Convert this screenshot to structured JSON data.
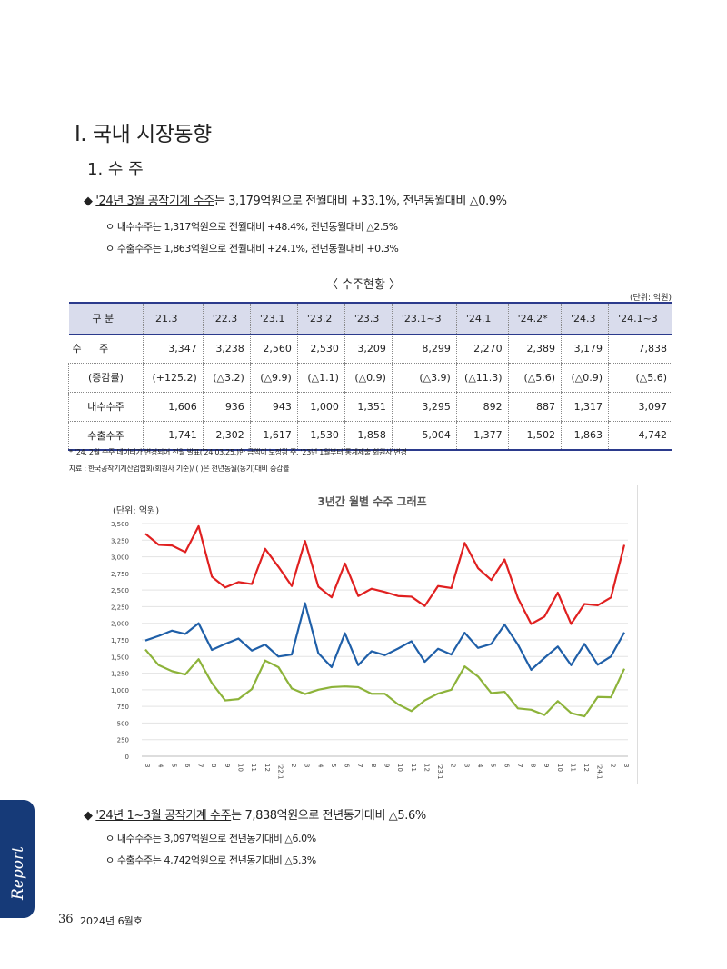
{
  "section_title": "Ⅰ. 국내 시장동향",
  "subsection_title": "1. 수 주",
  "bullet1": {
    "marker": "◆",
    "underlined": "'24년 3월 공작기계 수주",
    "rest": "는 3,179억원으로 전월대비 +33.1%, 전년동월대비 △0.9%"
  },
  "bullet1_subs": [
    "ㅇ 내수수주는 1,317억원으로 전월대비 +48.4%, 전년동월대비 △2.5%",
    "ㅇ 수출수주는 1,863억원으로 전월대비 +24.1%, 전년동월대비 +0.3%"
  ],
  "table_title": "〈 수주현황 〉",
  "table_unit": "(단위: 억원)",
  "table": {
    "header": [
      "구 분",
      "'21.3",
      "'22.3",
      "'23.1",
      "'23.2",
      "'23.3",
      "'23.1~3",
      "'24.1",
      "'24.2*",
      "'24.3",
      "'24.1~3"
    ],
    "rows": [
      {
        "label": "수  주",
        "values": [
          "3,347",
          "3,238",
          "2,560",
          "2,530",
          "3,209",
          "8,299",
          "2,270",
          "2,389",
          "3,179",
          "7,838"
        ]
      },
      {
        "label": "(증감률)",
        "values": [
          "(+125.2)",
          "(△3.2)",
          "(△9.9)",
          "(△1.1)",
          "(△0.9)",
          "(△3.9)",
          "(△11.3)",
          "(△5.6)",
          "(△0.9)",
          "(△5.6)"
        ]
      },
      {
        "label": "내수수주",
        "values": [
          "1,606",
          "936",
          "943",
          "1,000",
          "1,351",
          "3,295",
          "892",
          "887",
          "1,317",
          "3,097"
        ]
      },
      {
        "label": "수출수주",
        "values": [
          "1,741",
          "2,302",
          "1,617",
          "1,530",
          "1,858",
          "5,004",
          "1,377",
          "1,502",
          "1,863",
          "4,742"
        ]
      }
    ]
  },
  "note1": "* '24. 2월 수주 데이터가 변경되어 전월 발표('24.03.25.)한 금액이 보정됨        주. '23년 1월부터 통계제출 회원사 변경",
  "note2": "자료 : 한국공작기계산업협회(회원사 기준)/ (  )은 전년동월(동기)대비 증감률",
  "chart_data": {
    "type": "line",
    "title": "3년간 월별 수주 그래프",
    "ylabel": "(단위: 억원)",
    "ylim": [
      0,
      3500
    ],
    "yticks": [
      "0",
      "250",
      "500",
      "750",
      "1,000",
      "1,250",
      "1,500",
      "1,750",
      "2,000",
      "2,250",
      "2,500",
      "2,750",
      "3,000",
      "3,250",
      "3,500"
    ],
    "categories": [
      "3",
      "4",
      "5",
      "6",
      "7",
      "8",
      "9",
      "10",
      "11",
      "12",
      "'22.1",
      "2",
      "3",
      "4",
      "5",
      "6",
      "7",
      "8",
      "9",
      "10",
      "11",
      "12",
      "'23.1",
      "2",
      "3",
      "4",
      "5",
      "6",
      "7",
      "8",
      "9",
      "10",
      "11",
      "12",
      "'24.1",
      "2",
      "3"
    ],
    "series": [
      {
        "color": "#e02020",
        "values": [
          3347,
          3180,
          3170,
          3070,
          3460,
          2700,
          2540,
          2620,
          2590,
          3120,
          2850,
          2560,
          3238,
          2550,
          2390,
          2900,
          2410,
          2520,
          2470,
          2410,
          2400,
          2260,
          2560,
          2530,
          3209,
          2830,
          2650,
          2960,
          2380,
          1990,
          2100,
          2460,
          1990,
          2290,
          2270,
          2389,
          3179
        ]
      },
      {
        "color": "#1f5fa8",
        "values": [
          1741,
          1810,
          1890,
          1840,
          2000,
          1600,
          1690,
          1770,
          1590,
          1680,
          1500,
          1530,
          2302,
          1550,
          1340,
          1850,
          1370,
          1580,
          1520,
          1620,
          1730,
          1420,
          1617,
          1530,
          1858,
          1630,
          1690,
          1980,
          1680,
          1300,
          1480,
          1650,
          1370,
          1690,
          1377,
          1502,
          1863
        ]
      },
      {
        "color": "#8db33a",
        "values": [
          1606,
          1370,
          1280,
          1230,
          1460,
          1100,
          840,
          860,
          1010,
          1440,
          1340,
          1020,
          936,
          1000,
          1040,
          1050,
          1040,
          940,
          940,
          780,
          680,
          840,
          943,
          1000,
          1351,
          1200,
          950,
          970,
          720,
          700,
          620,
          830,
          650,
          600,
          892,
          887,
          1317
        ]
      }
    ]
  },
  "bullet2": {
    "marker": "◆",
    "underlined": "'24년 1~3월 공작기계 수주",
    "rest": "는 7,838억원으로 전년동기대비 △5.6%"
  },
  "bullet2_subs": [
    "ㅇ 내수수주는 3,097억원으로 전년동기대비 △6.0%",
    "ㅇ 수출수주는 4,742억원으로 전년동기대비 △5.3%"
  ],
  "side_tab": "Report",
  "page_number": "36",
  "issue": "2024년 6월호"
}
